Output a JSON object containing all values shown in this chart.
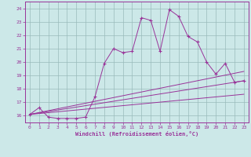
{
  "xlabel": "Windchill (Refroidissement éolien,°C)",
  "bg_color": "#cce8e8",
  "line_color": "#993399",
  "grid_color": "#99bbbb",
  "xlim": [
    -0.5,
    23.5
  ],
  "ylim": [
    15.5,
    24.5
  ],
  "yticks": [
    16,
    17,
    18,
    19,
    20,
    21,
    22,
    23,
    24
  ],
  "xticks": [
    0,
    1,
    2,
    3,
    4,
    5,
    6,
    7,
    8,
    9,
    10,
    11,
    12,
    13,
    14,
    15,
    16,
    17,
    18,
    19,
    20,
    21,
    22,
    23
  ],
  "series": [
    [
      0,
      16.1
    ],
    [
      1,
      16.6
    ],
    [
      2,
      15.9
    ],
    [
      3,
      15.8
    ],
    [
      4,
      15.8
    ],
    [
      5,
      15.8
    ],
    [
      6,
      15.9
    ],
    [
      7,
      17.4
    ],
    [
      8,
      19.9
    ],
    [
      9,
      21.0
    ],
    [
      10,
      20.7
    ],
    [
      11,
      20.8
    ],
    [
      12,
      23.3
    ],
    [
      13,
      23.1
    ],
    [
      14,
      20.8
    ],
    [
      15,
      23.9
    ],
    [
      16,
      23.4
    ],
    [
      17,
      21.9
    ],
    [
      18,
      21.5
    ],
    [
      19,
      20.0
    ],
    [
      20,
      19.1
    ],
    [
      21,
      19.9
    ],
    [
      22,
      18.5
    ],
    [
      23,
      18.6
    ]
  ],
  "trend_lines": [
    [
      [
        0,
        16.1
      ],
      [
        23,
        19.3
      ]
    ],
    [
      [
        0,
        16.1
      ],
      [
        23,
        18.6
      ]
    ],
    [
      [
        0,
        16.1
      ],
      [
        23,
        17.6
      ]
    ]
  ]
}
